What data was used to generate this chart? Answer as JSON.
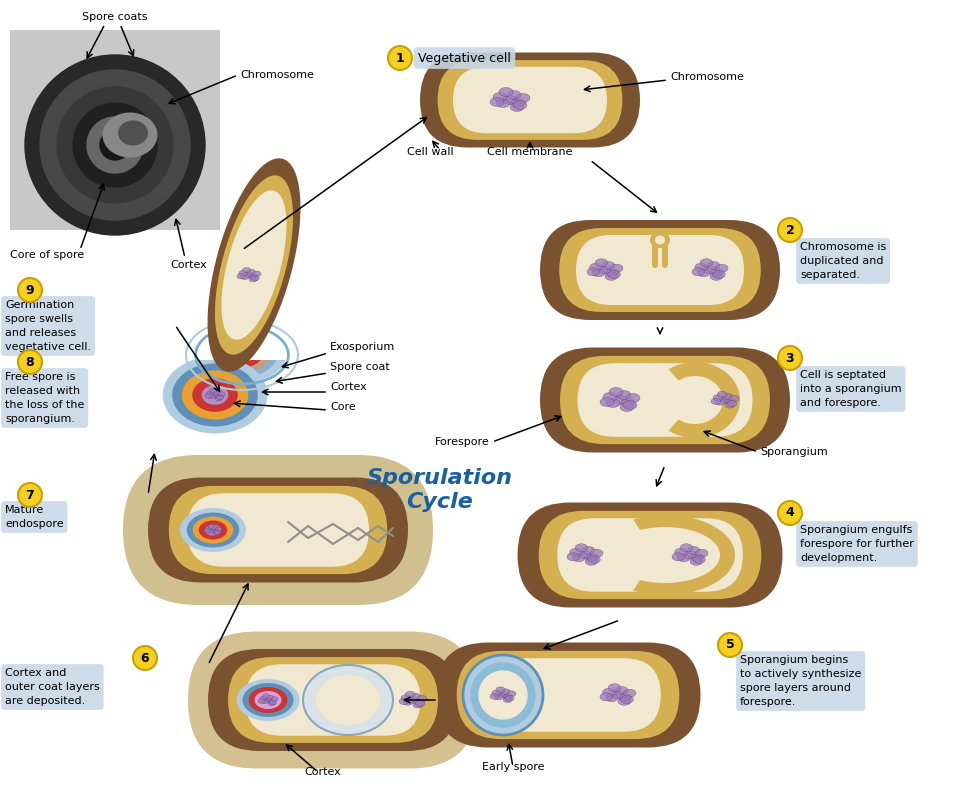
{
  "title": "Sporulation\nCycle",
  "title_color": "#1a5fa0",
  "background_color": "#ffffff",
  "step_circle_color": "#f5d020",
  "step_circle_edge": "#c8a000",
  "label_box_color": "#c8d8e8",
  "figsize": [
    9.74,
    7.97
  ],
  "dpi": 100,
  "cell_wall_color": "#7a5230",
  "cell_membrane_color": "#d4b050",
  "cell_interior_color": "#f0e8d0",
  "chromosome_color": "#9b7ab8",
  "spore_lblue": "#b0cce0",
  "spore_blue": "#6090b8",
  "spore_red": "#cc3333",
  "spore_orange": "#e8a030",
  "spore_pink": "#d0a0c0",
  "spore_purple": "#b090c0",
  "tan_coat": "#d4c090",
  "annotations": {
    "spore_coats": "Spore coats",
    "chromosome_mic": "Chromosome",
    "core_of_spore": "Core of spore",
    "cortex_mic": "Cortex",
    "vegetative_cell": "Vegetative cell",
    "chromosome_1": "Chromosome",
    "cell_wall": "Cell wall",
    "cell_membrane": "Cell membrane",
    "forespore": "Forespore",
    "sporangium": "Sporangium",
    "early_spore": "Early spore",
    "cortex_6": "Cortex",
    "exosporium": "Exosporium",
    "spore_coat": "Spore coat",
    "cortex_8": "Cortex",
    "core_8": "Core"
  },
  "step_labels": {
    "1": "Vegetative cell",
    "2": "Chromosome is\nduplicated and\nseparated.",
    "3": "Cell is septated\ninto a sporangium\nand forespore.",
    "4": "Sporangium engulfs\nforespore for further\ndevelopment.",
    "5": "Sporangium begins\nto actively synthesize\nspore layers around\nforespore.",
    "6": "Cortex and\nouter coat layers\nare deposited.",
    "7": "Mature\nendospore",
    "8": "Free spore is\nreleased with\nthe loss of the\nsporangium.",
    "9": "Germination\nspore swells\nand releases\nvegetative cell."
  }
}
